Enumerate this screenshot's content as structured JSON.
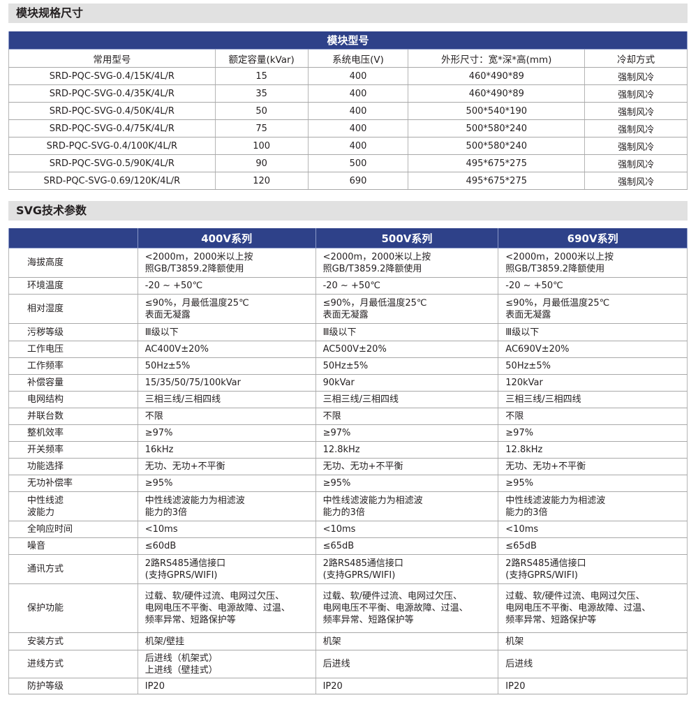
{
  "section1": {
    "title": "模块规格尺寸"
  },
  "table1": {
    "title": "模块型号",
    "headers": [
      "常用型号",
      "额定容量(kVar)",
      "系统电压(V)",
      "外形尺寸：宽*深*高(mm)",
      "冷却方式"
    ],
    "rows": [
      [
        "SRD-PQC-SVG-0.4/15K/4L/R",
        "15",
        "400",
        "460*490*89",
        "强制风冷"
      ],
      [
        "SRD-PQC-SVG-0.4/35K/4L/R",
        "35",
        "400",
        "460*490*89",
        "强制风冷"
      ],
      [
        "SRD-PQC-SVG-0.4/50K/4L/R",
        "50",
        "400",
        "500*540*190",
        "强制风冷"
      ],
      [
        "SRD-PQC-SVG-0.4/75K/4L/R",
        "75",
        "400",
        "500*580*240",
        "强制风冷"
      ],
      [
        "SRD-PQC-SVG-0.4/100K/4L/R",
        "100",
        "400",
        "500*580*240",
        "强制风冷"
      ],
      [
        "SRD-PQC-SVG-0.5/90K/4L/R",
        "90",
        "500",
        "495*675*275",
        "强制风冷"
      ],
      [
        "SRD-PQC-SVG-0.69/120K/4L/R",
        "120",
        "690",
        "495*675*275",
        "强制风冷"
      ]
    ]
  },
  "section2": {
    "title": "SVG技术参数"
  },
  "table2": {
    "headers": [
      "",
      "400V系列",
      "500V系列",
      "690V系列"
    ],
    "rows": [
      [
        "海拔高度",
        " <2000m，2000米以上按\n 照GB/T3859.2降额使用",
        " <2000m，2000米以上按\n 照GB/T3859.2降额使用",
        " <2000m，2000米以上按\n 照GB/T3859.2降额使用"
      ],
      [
        "环境温度",
        "-20 ~ +50℃",
        "-20 ~ +50℃",
        "-20 ~ +50℃"
      ],
      [
        "相对湿度",
        "≤90%，月最低温度25℃\n表面无凝露",
        "≤90%，月最低温度25℃\n表面无凝露",
        "≤90%，月最低温度25℃\n表面无凝露"
      ],
      [
        "污秽等级",
        "Ⅲ级以下",
        "Ⅲ级以下",
        "Ⅲ级以下"
      ],
      [
        "工作电压",
        "AC400V±20%",
        "AC500V±20%",
        "AC690V±20%"
      ],
      [
        "工作频率",
        "50Hz±5%",
        "50Hz±5%",
        "50Hz±5%"
      ],
      [
        "补偿容量",
        "15/35/50/75/100kVar",
        "90kVar",
        "120kVar"
      ],
      [
        "电网结构",
        "三相三线/三相四线",
        "三相三线/三相四线",
        "三相三线/三相四线"
      ],
      [
        "并联台数",
        "不限",
        "不限",
        "不限"
      ],
      [
        "整机效率",
        "≥97%",
        "≥97%",
        "≥97%"
      ],
      [
        "开关频率",
        "16kHz",
        "12.8kHz",
        "12.8kHz"
      ],
      [
        "功能选择",
        "无功、无功+不平衡",
        "无功、无功+不平衡",
        "无功、无功+不平衡"
      ],
      [
        "无功补偿率",
        "≥95%",
        "≥95%",
        "≥95%"
      ],
      [
        "中性线滤\n 波能力",
        "中性线滤波能力为相滤波\n能力的3倍",
        "中性线滤波能力为相滤波\n能力的3倍",
        "中性线滤波能力为相滤波\n能力的3倍"
      ],
      [
        "全响应时间",
        "<10ms",
        "<10ms",
        "<10ms"
      ],
      [
        "噪音",
        "≤60dB",
        "≤65dB",
        "≤65dB"
      ],
      [
        "通讯方式",
        " 2路RS485通信接口\n (支持GPRS/WIFI)",
        "2路RS485通信接口\n(支持GPRS/WIFI)",
        "2路RS485通信接口\n(支持GPRS/WIFI)"
      ],
      [
        "保护功能",
        "过载、软/硬件过流、电网过欠压、\n电网电压不平衡、电源故障、过温、\n频率异常、短路保护等",
        "过载、软/硬件过流、电网过欠压、\n电网电压不平衡、电源故障、过温、\n频率异常、短路保护等",
        "过载、软/硬件过流、电网过欠压、\n电网电压不平衡、电源故障、过温、\n频率异常、短路保护等"
      ],
      [
        "安装方式",
        "机架/壁挂",
        "机架",
        "机架"
      ],
      [
        "进线方式",
        "后进线（机架式）\n上进线（壁挂式）",
        "后进线",
        "后进线"
      ],
      [
        "防护等级",
        "IP20",
        "IP20",
        "IP20"
      ]
    ]
  },
  "colors": {
    "header_blue": "#2e4189",
    "section_gray": "#e1e1e1"
  }
}
